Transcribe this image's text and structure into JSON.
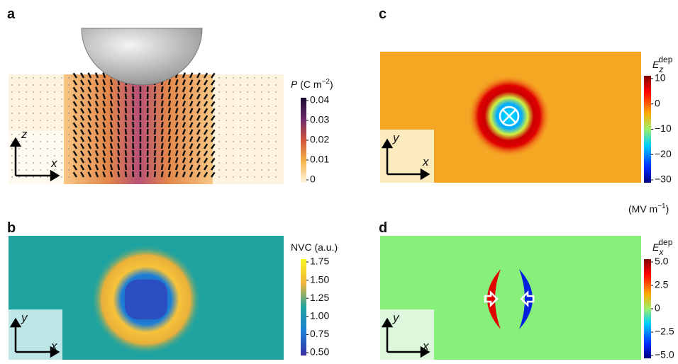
{
  "panels": [
    {
      "label": "a",
      "axes": [
        "z",
        "x"
      ],
      "colorbar": {
        "symbol": "P",
        "unit": "(C m",
        "exponent": "−2",
        "close": ")",
        "ticks": [
          "0.04",
          "0.03",
          "0.02",
          "0.01",
          "0"
        ]
      }
    },
    {
      "label": "b",
      "axes": [
        "y",
        "x"
      ],
      "colorbar": {
        "title": "NVC (a.u.)",
        "ticks": [
          "1.75",
          "1.50",
          "1.25",
          "1.00",
          "0.75",
          "0.50"
        ]
      }
    },
    {
      "label": "c",
      "axes": [
        "y",
        "x"
      ],
      "colorbar": {
        "symbol": "E",
        "subscript": "z",
        "superscript": "dep",
        "ticks": [
          "10",
          "0",
          "−10",
          "−20",
          "−30"
        ]
      }
    },
    {
      "label": "d",
      "axes": [
        "y",
        "x"
      ],
      "colorbar": {
        "symbol": "E",
        "subscript": "x",
        "superscript": "dep",
        "ticks": [
          "5.0",
          "2.5",
          "0",
          "−2.5",
          "−5.0"
        ]
      }
    }
  ],
  "unit": {
    "text": "(MV m",
    "exponent": "−1",
    "close": ")"
  }
}
